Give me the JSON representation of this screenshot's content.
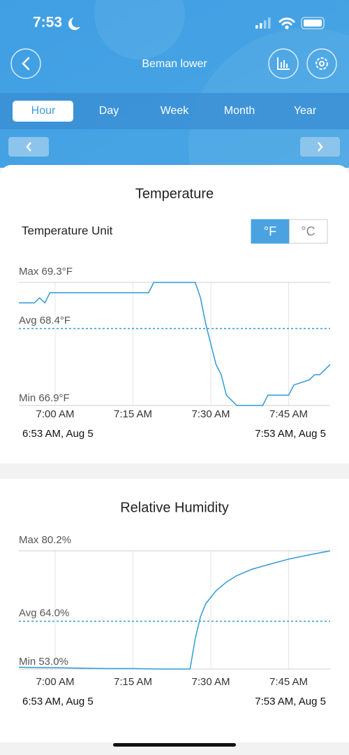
{
  "status_bar": {
    "time": "7:53"
  },
  "header": {
    "title": "Beman lower"
  },
  "tabs": {
    "items": [
      "Hour",
      "Day",
      "Week",
      "Month",
      "Year"
    ],
    "selected": 0
  },
  "temperature": {
    "title": "Temperature",
    "unit_label": "Temperature Unit",
    "unit_options": [
      "°F",
      "°C"
    ],
    "unit_selected": 0,
    "chart": {
      "type": "line",
      "color": "#2f9ad6",
      "x": [
        413,
        416,
        417,
        418,
        419,
        438,
        439,
        447,
        448,
        449,
        450,
        451,
        452,
        453,
        455,
        460,
        461,
        465,
        466,
        469,
        470,
        471,
        472,
        473
      ],
      "values": [
        68.9,
        68.9,
        69.0,
        68.9,
        69.1,
        69.1,
        69.3,
        69.3,
        69.0,
        68.5,
        68.1,
        67.7,
        67.5,
        67.1,
        66.9,
        66.9,
        67.1,
        67.1,
        67.3,
        67.4,
        67.5,
        67.5,
        67.6,
        67.7
      ],
      "xlim": [
        413,
        473
      ],
      "xticks": [
        {
          "value": 420,
          "label": "7:00 AM"
        },
        {
          "value": 435,
          "label": "7:15 AM"
        },
        {
          "value": 450,
          "label": "7:30 AM"
        },
        {
          "value": 465,
          "label": "7:45 AM"
        }
      ],
      "ylim": [
        66.9,
        69.3
      ],
      "max": {
        "value": 69.3,
        "label": "Max 69.3°F"
      },
      "avg": {
        "value": 68.4,
        "label": "Avg 68.4°F"
      },
      "min": {
        "value": 66.9,
        "label": "Min 66.9°F"
      },
      "range_start": "6:53 AM,  Aug 5",
      "range_end": "7:53 AM,  Aug 5"
    }
  },
  "humidity": {
    "title": "Relative Humidity",
    "chart": {
      "type": "line",
      "color": "#2f9ad6",
      "x": [
        413,
        420,
        425,
        430,
        435,
        440,
        446,
        447,
        448,
        449,
        451,
        453,
        455,
        458,
        461,
        465,
        469,
        473
      ],
      "values": [
        53.4,
        53.3,
        53.2,
        53.1,
        53.1,
        53.0,
        53.0,
        60.0,
        65.0,
        68.0,
        71.0,
        73.0,
        74.5,
        76.0,
        77.0,
        78.3,
        79.3,
        80.2
      ],
      "xlim": [
        413,
        473
      ],
      "xticks": [
        {
          "value": 420,
          "label": "7:00 AM"
        },
        {
          "value": 435,
          "label": "7:15 AM"
        },
        {
          "value": 450,
          "label": "7:30 AM"
        },
        {
          "value": 465,
          "label": "7:45 AM"
        }
      ],
      "ylim": [
        53.0,
        80.2
      ],
      "max": {
        "value": 80.2,
        "label": "Max 80.2%"
      },
      "avg": {
        "value": 64.0,
        "label": "Avg 64.0%"
      },
      "min": {
        "value": 53.0,
        "label": "Min 53.0%"
      },
      "range_start": "6:53 AM,  Aug 5",
      "range_end": "7:53 AM,  Aug 5"
    }
  }
}
